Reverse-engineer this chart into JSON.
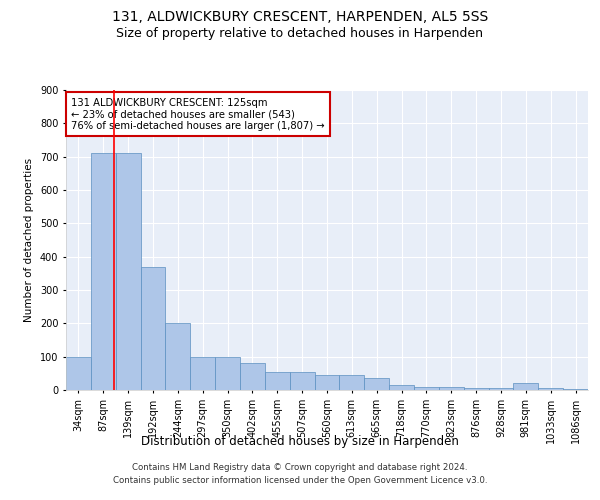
{
  "title1": "131, ALDWICKBURY CRESCENT, HARPENDEN, AL5 5SS",
  "title2": "Size of property relative to detached houses in Harpenden",
  "xlabel": "Distribution of detached houses by size in Harpenden",
  "ylabel": "Number of detached properties",
  "footnote1": "Contains HM Land Registry data © Crown copyright and database right 2024.",
  "footnote2": "Contains public sector information licensed under the Open Government Licence v3.0.",
  "bin_labels": [
    "34sqm",
    "87sqm",
    "139sqm",
    "192sqm",
    "244sqm",
    "297sqm",
    "350sqm",
    "402sqm",
    "455sqm",
    "507sqm",
    "560sqm",
    "613sqm",
    "665sqm",
    "718sqm",
    "770sqm",
    "823sqm",
    "876sqm",
    "928sqm",
    "981sqm",
    "1033sqm",
    "1086sqm"
  ],
  "bar_values": [
    100,
    710,
    710,
    370,
    200,
    100,
    100,
    80,
    55,
    55,
    45,
    45,
    35,
    15,
    10,
    10,
    5,
    5,
    20,
    5,
    3
  ],
  "bar_color": "#aec6e8",
  "bar_edge_color": "#5a8fc0",
  "property_line_x": 1.45,
  "annotation_text": "131 ALDWICKBURY CRESCENT: 125sqm\n← 23% of detached houses are smaller (543)\n76% of semi-detached houses are larger (1,807) →",
  "annotation_box_color": "#cc0000",
  "ylim": [
    0,
    900
  ],
  "yticks": [
    0,
    100,
    200,
    300,
    400,
    500,
    600,
    700,
    800,
    900
  ],
  "bg_color": "#e8eef8",
  "grid_color": "#ffffff",
  "title_fontsize": 10,
  "subtitle_fontsize": 9
}
